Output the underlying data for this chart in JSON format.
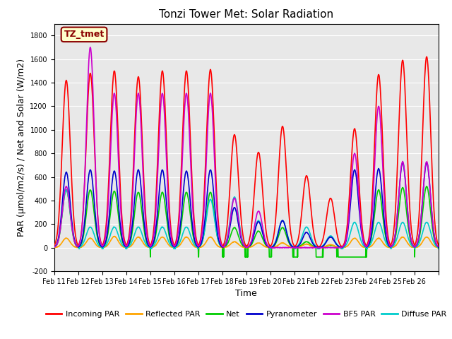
{
  "title": "Tonzi Tower Met: Solar Radiation",
  "ylabel": "PAR (μmol/m2/s) / Net and Solar (W/m2)",
  "xlabel": "Time",
  "ylim": [
    -200,
    1900
  ],
  "yticks": [
    -200,
    0,
    200,
    400,
    600,
    800,
    1000,
    1200,
    1400,
    1600,
    1800
  ],
  "background_color": "#e8e8e8",
  "annotation_text": "TZ_tmet",
  "annotation_bg": "#ffffcc",
  "annotation_border": "#8b0000",
  "legend_entries": [
    "Incoming PAR",
    "Reflected PAR",
    "Net",
    "Pyranometer",
    "BF5 PAR",
    "Diffuse PAR"
  ],
  "line_colors": [
    "#ff0000",
    "#ffa500",
    "#00cc00",
    "#0000cc",
    "#cc00cc",
    "#00cccc"
  ],
  "line_widths": [
    1.2,
    1.2,
    1.2,
    1.2,
    1.2,
    1.2
  ],
  "day_peaks_incoming": [
    1420,
    1480,
    1500,
    1450,
    1500,
    1500,
    1510,
    960,
    810,
    1030,
    610,
    420,
    1010,
    1470,
    1590,
    1620
  ],
  "day_peaks_reflected": [
    80,
    80,
    95,
    90,
    90,
    90,
    90,
    50,
    40,
    40,
    30,
    25,
    80,
    80,
    90,
    90
  ],
  "day_peaks_net": [
    490,
    490,
    480,
    470,
    470,
    470,
    470,
    170,
    140,
    170,
    50,
    20,
    0,
    490,
    510,
    520
  ],
  "day_peaks_pyranometer": [
    640,
    660,
    650,
    660,
    660,
    650,
    660,
    340,
    220,
    230,
    130,
    90,
    660,
    670,
    720,
    720
  ],
  "day_peaks_bf5": [
    520,
    1700,
    1310,
    1310,
    1310,
    1310,
    1310,
    420,
    310,
    0,
    0,
    0,
    800,
    1200,
    730,
    730
  ],
  "day_peaks_diffuse": [
    490,
    175,
    175,
    175,
    175,
    175,
    410,
    430,
    230,
    230,
    175,
    100,
    215,
    215,
    215,
    215
  ],
  "n_days": 16,
  "points_per_day": 100,
  "x_tick_labels": [
    "Feb 11",
    "Feb 12",
    "Feb 13",
    "Feb 14",
    "Feb 15",
    "Feb 16",
    "Feb 17",
    "Feb 18",
    "Feb 19",
    "Feb 20",
    "Feb 21",
    "Feb 22",
    "Feb 23",
    "Feb 24",
    "Feb 25",
    "Feb 26"
  ],
  "title_fontsize": 11,
  "axis_label_fontsize": 9,
  "tick_fontsize": 7,
  "legend_fontsize": 8
}
